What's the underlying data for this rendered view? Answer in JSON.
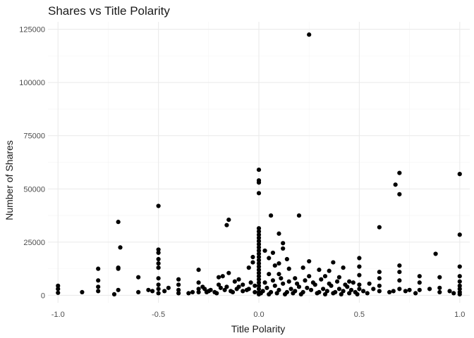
{
  "chart_data": {
    "type": "scatter",
    "title": "Shares vs Title Polarity",
    "xlabel": "Title Polarity",
    "ylabel": "Number of Shares",
    "xlim": [
      -1.05,
      1.05
    ],
    "ylim": [
      -3500,
      128500
    ],
    "x_ticks": [
      -1.0,
      -0.5,
      0.0,
      0.5,
      1.0
    ],
    "x_tick_labels": [
      "-1.0",
      "-0.5",
      "0.0",
      "0.5",
      "1.0"
    ],
    "y_ticks": [
      0,
      25000,
      50000,
      75000,
      100000,
      125000
    ],
    "y_tick_labels": [
      "0",
      "25000",
      "50000",
      "75000",
      "100000",
      "125000"
    ],
    "x_minor_ticks": [
      -0.75,
      -0.25,
      0.25,
      0.75
    ],
    "y_minor_ticks": [
      12500,
      37500,
      62500,
      87500,
      112500
    ],
    "grid": true,
    "legend": "none",
    "marker_color": "#000000",
    "points": [
      [
        0.25,
        122500
      ],
      [
        0.0,
        59000
      ],
      [
        0.0,
        54000
      ],
      [
        0.0,
        53000
      ],
      [
        0.0,
        48000
      ],
      [
        1.0,
        57000
      ],
      [
        0.7,
        57500
      ],
      [
        0.68,
        52000
      ],
      [
        0.7,
        47500
      ],
      [
        -0.5,
        42000
      ],
      [
        0.2,
        37500
      ],
      [
        0.06,
        37500
      ],
      [
        -0.15,
        35500
      ],
      [
        -0.16,
        33000
      ],
      [
        -0.7,
        34500
      ],
      [
        0.6,
        32000
      ],
      [
        1.0,
        28500
      ],
      [
        0.1,
        29000
      ],
      [
        0.0,
        31500
      ],
      [
        0.0,
        30000
      ],
      [
        0.0,
        28500
      ],
      [
        0.0,
        27000
      ],
      [
        0.0,
        25500
      ],
      [
        0.0,
        24000
      ],
      [
        0.0,
        22500
      ],
      [
        0.0,
        21000
      ],
      [
        0.0,
        19500
      ],
      [
        0.0,
        18000
      ],
      [
        0.0,
        16500
      ],
      [
        0.0,
        15000
      ],
      [
        0.0,
        13500
      ],
      [
        0.0,
        12000
      ],
      [
        0.0,
        10500
      ],
      [
        0.0,
        9000
      ],
      [
        0.0,
        7500
      ],
      [
        0.0,
        6000
      ],
      [
        0.0,
        4500
      ],
      [
        0.0,
        3000
      ],
      [
        0.0,
        1500
      ],
      [
        0.0,
        500
      ],
      [
        -0.69,
        22500
      ],
      [
        -0.5,
        21500
      ],
      [
        -0.5,
        20000
      ],
      [
        -0.7,
        13000
      ],
      [
        -0.7,
        12500
      ],
      [
        -0.8,
        12500
      ],
      [
        -0.8,
        7000
      ],
      [
        -0.8,
        4000
      ],
      [
        -0.8,
        2000
      ],
      [
        -1.0,
        4500
      ],
      [
        -1.0,
        3000
      ],
      [
        -1.0,
        1200
      ],
      [
        -0.88,
        1500
      ],
      [
        -0.72,
        500
      ],
      [
        -0.7,
        2500
      ],
      [
        -0.6,
        8500
      ],
      [
        -0.6,
        1500
      ],
      [
        -0.55,
        2500
      ],
      [
        -0.53,
        2000
      ],
      [
        -0.45,
        3500
      ],
      [
        -0.47,
        2000
      ],
      [
        -0.5,
        17000
      ],
      [
        -0.5,
        15000
      ],
      [
        -0.5,
        13000
      ],
      [
        -0.5,
        8000
      ],
      [
        -0.5,
        5000
      ],
      [
        -0.5,
        3000
      ],
      [
        -0.5,
        1000
      ],
      [
        -0.4,
        7500
      ],
      [
        -0.4,
        5000
      ],
      [
        -0.4,
        2500
      ],
      [
        -0.4,
        1000
      ],
      [
        -0.3,
        12000
      ],
      [
        -0.3,
        6000
      ],
      [
        -0.3,
        3000
      ],
      [
        -0.3,
        1500
      ],
      [
        -0.35,
        1000
      ],
      [
        -0.33,
        1500
      ],
      [
        -0.27,
        3000
      ],
      [
        -0.25,
        2000
      ],
      [
        -0.2,
        8500
      ],
      [
        -0.2,
        5000
      ],
      [
        -0.18,
        9000
      ],
      [
        -0.15,
        10500
      ],
      [
        -0.12,
        6500
      ],
      [
        -0.1,
        4000
      ],
      [
        -0.1,
        7500
      ],
      [
        -0.05,
        13000
      ],
      [
        -0.03,
        18000
      ],
      [
        -0.03,
        15500
      ],
      [
        -0.22,
        1500
      ],
      [
        -0.17,
        2500
      ],
      [
        -0.13,
        1500
      ],
      [
        -0.08,
        2000
      ],
      [
        -0.05,
        3000
      ],
      [
        -0.02,
        1500
      ],
      [
        0.03,
        21000
      ],
      [
        0.05,
        17500
      ],
      [
        0.07,
        20000
      ],
      [
        0.12,
        24500
      ],
      [
        0.12,
        22000
      ],
      [
        0.1,
        15000
      ],
      [
        0.08,
        14000
      ],
      [
        0.14,
        17000
      ],
      [
        0.15,
        12500
      ],
      [
        0.05,
        10000
      ],
      [
        0.1,
        10000
      ],
      [
        0.18,
        8000
      ],
      [
        0.22,
        13000
      ],
      [
        0.25,
        9000
      ],
      [
        0.25,
        16000
      ],
      [
        0.3,
        12000
      ],
      [
        0.33,
        9000
      ],
      [
        0.35,
        11500
      ],
      [
        0.37,
        15500
      ],
      [
        0.4,
        8500
      ],
      [
        0.42,
        13000
      ],
      [
        0.45,
        6500
      ],
      [
        0.5,
        17500
      ],
      [
        0.5,
        13500
      ],
      [
        0.5,
        9500
      ],
      [
        0.5,
        5000
      ],
      [
        0.55,
        5500
      ],
      [
        0.57,
        3000
      ],
      [
        0.6,
        11000
      ],
      [
        0.6,
        8000
      ],
      [
        0.6,
        4500
      ],
      [
        0.6,
        2000
      ],
      [
        0.65,
        1500
      ],
      [
        0.67,
        2000
      ],
      [
        0.7,
        14000
      ],
      [
        0.7,
        11000
      ],
      [
        0.7,
        7000
      ],
      [
        0.7,
        3000
      ],
      [
        0.73,
        2000
      ],
      [
        0.75,
        2500
      ],
      [
        0.8,
        9000
      ],
      [
        0.8,
        6000
      ],
      [
        0.8,
        2500
      ],
      [
        0.78,
        1000
      ],
      [
        0.85,
        3000
      ],
      [
        0.88,
        19500
      ],
      [
        0.9,
        8500
      ],
      [
        0.9,
        3500
      ],
      [
        0.9,
        1500
      ],
      [
        1.0,
        13500
      ],
      [
        1.0,
        9000
      ],
      [
        1.0,
        6500
      ],
      [
        1.0,
        4500
      ],
      [
        1.0,
        3000
      ],
      [
        1.0,
        1500
      ],
      [
        1.0,
        500
      ],
      [
        0.95,
        2000
      ],
      [
        0.97,
        1000
      ],
      [
        0.02,
        2000
      ],
      [
        0.04,
        3500
      ],
      [
        0.06,
        1500
      ],
      [
        0.08,
        4500
      ],
      [
        0.1,
        2500
      ],
      [
        0.12,
        5500
      ],
      [
        0.14,
        1500
      ],
      [
        0.16,
        3000
      ],
      [
        0.18,
        2000
      ],
      [
        0.2,
        4000
      ],
      [
        0.22,
        1500
      ],
      [
        0.24,
        3500
      ],
      [
        0.26,
        2500
      ],
      [
        0.28,
        5000
      ],
      [
        0.3,
        1500
      ],
      [
        0.32,
        3000
      ],
      [
        0.34,
        2000
      ],
      [
        0.36,
        4500
      ],
      [
        0.38,
        1500
      ],
      [
        0.4,
        3000
      ],
      [
        0.42,
        2000
      ],
      [
        0.44,
        4000
      ],
      [
        0.46,
        2500
      ],
      [
        0.48,
        1500
      ],
      [
        0.5,
        3000
      ],
      [
        0.52,
        2000
      ],
      [
        0.54,
        1000
      ],
      [
        0.03,
        6000
      ],
      [
        0.07,
        7000
      ],
      [
        0.11,
        8000
      ],
      [
        0.15,
        6500
      ],
      [
        0.19,
        5500
      ],
      [
        0.23,
        7000
      ],
      [
        0.27,
        6000
      ],
      [
        0.31,
        7500
      ],
      [
        0.35,
        5500
      ],
      [
        0.39,
        6500
      ],
      [
        0.43,
        5000
      ],
      [
        0.47,
        6000
      ],
      [
        -0.02,
        4500
      ],
      [
        -0.04,
        6000
      ],
      [
        -0.06,
        2500
      ],
      [
        -0.08,
        5000
      ],
      [
        -0.11,
        3000
      ],
      [
        -0.14,
        2000
      ],
      [
        -0.16,
        4000
      ],
      [
        -0.19,
        3500
      ],
      [
        -0.21,
        1000
      ],
      [
        -0.24,
        2500
      ],
      [
        -0.26,
        1500
      ],
      [
        -0.28,
        4000
      ],
      [
        0.01,
        1000
      ],
      [
        0.05,
        500
      ],
      [
        0.09,
        1000
      ],
      [
        0.13,
        500
      ],
      [
        0.17,
        1000
      ],
      [
        0.21,
        500
      ],
      [
        0.29,
        1000
      ],
      [
        0.33,
        500
      ],
      [
        0.37,
        1000
      ],
      [
        0.41,
        500
      ],
      [
        0.45,
        1000
      ],
      [
        0.49,
        500
      ]
    ]
  }
}
